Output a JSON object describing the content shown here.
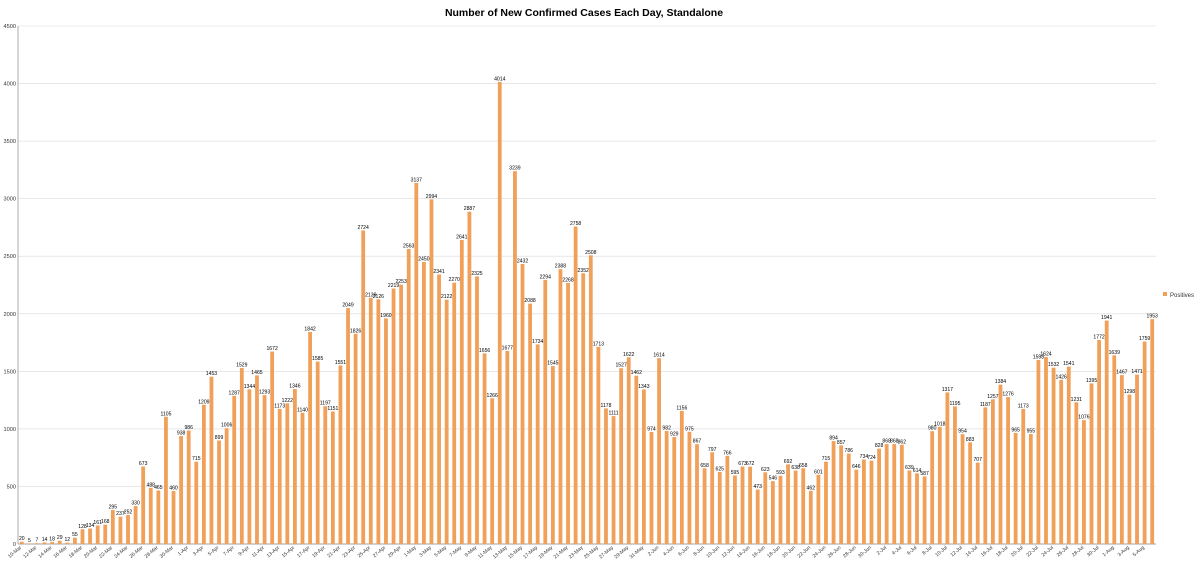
{
  "chart_data": {
    "type": "bar",
    "title": "Number of New Confirmed Cases Each Day, Standalone",
    "xlabel": "",
    "ylabel": "",
    "ylim": [
      0,
      4500
    ],
    "yticks": [
      0,
      500,
      1000,
      1500,
      2000,
      2500,
      3000,
      3500,
      4000,
      4500
    ],
    "grid": true,
    "legend": "right",
    "bar_color": "#F0A058",
    "categories": [
      "10-Mar",
      "11-Mar",
      "12-Mar",
      "13-Mar",
      "14-Mar",
      "15-Mar",
      "16-Mar",
      "17-Mar",
      "18-Mar",
      "19-Mar",
      "20-Mar",
      "21-Mar",
      "22-Mar",
      "23-Mar",
      "24-Mar",
      "25-Mar",
      "26-Mar",
      "27-Mar",
      "28-Mar",
      "29-Mar",
      "30-Mar",
      "31-Mar",
      "1-Apr",
      "2-Apr",
      "3-Apr",
      "4-Apr",
      "5-Apr",
      "6-Apr",
      "7-Apr",
      "8-Apr",
      "9-Apr",
      "10-Apr",
      "11-Apr",
      "12-Apr",
      "13-Apr",
      "14-Apr",
      "15-Apr",
      "16-Apr",
      "17-Apr",
      "18-Apr",
      "19-Apr",
      "20-Apr",
      "21-Apr",
      "22-Apr",
      "23-Apr",
      "24-Apr",
      "25-Apr",
      "26-Apr",
      "27-Apr",
      "28-Apr",
      "29-Apr",
      "30-Apr",
      "1-May",
      "2-May",
      "3-May",
      "4-May",
      "5-May",
      "6-May",
      "7-May",
      "8-May",
      "9-May",
      "10-May",
      "11-May",
      "12-May",
      "13-May",
      "14-May",
      "15-May",
      "16-May",
      "17-May",
      "18-May",
      "19-May",
      "20-May",
      "21-May",
      "22-May",
      "23-May",
      "24-May",
      "25-May",
      "26-May",
      "27-May",
      "28-May",
      "29-May",
      "30-May",
      "31-May",
      "1-Jun",
      "2-Jun",
      "3-Jun",
      "4-Jun",
      "5-Jun",
      "6-Jun",
      "7-Jun",
      "8-Jun",
      "9-Jun",
      "10-Jun",
      "11-Jun",
      "12-Jun",
      "13-Jun",
      "14-Jun",
      "15-Jun",
      "16-Jun",
      "17-Jun",
      "18-Jun",
      "19-Jun",
      "20-Jun",
      "21-Jun",
      "22-Jun",
      "23-Jun",
      "24-Jun",
      "25-Jun",
      "26-Jun",
      "27-Jun",
      "28-Jun",
      "29-Jun",
      "30-Jun",
      "1-Jul",
      "2-Jul",
      "3-Jul",
      "4-Jul",
      "5-Jul",
      "6-Jul",
      "7-Jul",
      "8-Jul",
      "9-Jul",
      "10-Jul",
      "11-Jul",
      "12-Jul",
      "13-Jul",
      "14-Jul",
      "15-Jul",
      "16-Jul",
      "17-Jul",
      "18-Jul",
      "19-Jul",
      "20-Jul",
      "21-Jul",
      "22-Jul",
      "23-Jul",
      "24-Jul",
      "25-Jul",
      "26-Jul",
      "27-Jul",
      "28-Jul",
      "29-Jul",
      "30-Jul",
      "31-Jul",
      "1-Aug",
      "2-Aug",
      "3-Aug",
      "4-Aug",
      "5-Aug",
      "6-Aug"
    ],
    "series": [
      {
        "name": "Positives",
        "values": [
          20,
          5,
          7,
          14,
          18,
          29,
          12,
          55,
          128,
          134,
          161,
          168,
          295,
          237,
          252,
          330,
          673,
          488,
          465,
          1105,
          460,
          938,
          986,
          715,
          1209,
          1453,
          899,
          1006,
          1287,
          1529,
          1344,
          1465,
          1293,
          1672,
          1173,
          1222,
          1346,
          1140,
          1842,
          1585,
          1197,
          1151,
          1551,
          2049,
          1826,
          2724,
          2139,
          2126,
          1960,
          2219,
          2253,
          2563,
          3137,
          2450,
          2994,
          2341,
          2122,
          2270,
          2641,
          2887,
          2325,
          1656,
          1266,
          4014,
          1677,
          3239,
          2432,
          2088,
          1734,
          2294,
          1545,
          2388,
          2268,
          2758,
          2352,
          2508,
          1713,
          1178,
          1111,
          1527,
          1622,
          1462,
          1343,
          974,
          1614,
          982,
          929,
          1156,
          975,
          867,
          658,
          797,
          625,
          766,
          595,
          673,
          672,
          473,
          623,
          546,
          593,
          692,
          638,
          658,
          462,
          601,
          715,
          894,
          857,
          786,
          646,
          734,
          724,
          828,
          868,
          868,
          862,
          639,
          614,
          587,
          980,
          1018,
          1317,
          1195,
          954,
          883,
          707,
          1187,
          1257,
          1384,
          1276,
          965,
          1173,
          955,
          1598,
          1624,
          1532,
          1426,
          1541,
          1231,
          1076,
          1395,
          1772,
          1941,
          1639,
          1467,
          1298,
          1471,
          1759,
          1953
        ]
      }
    ],
    "x_tick_every": 2
  }
}
